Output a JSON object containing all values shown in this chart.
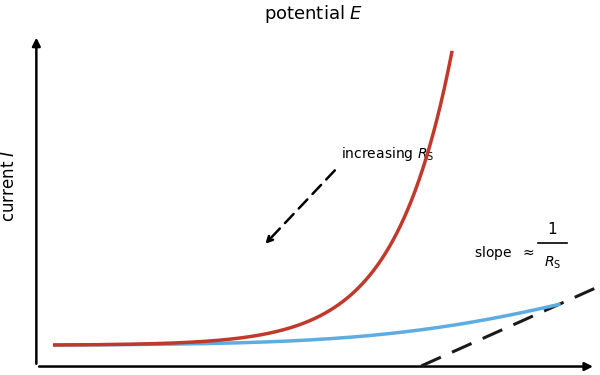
{
  "title": "potential $E$",
  "ylabel": "current $I$",
  "bg_color": "#ffffff",
  "red_color": "#c0392b",
  "blue_color": "#5dade2",
  "dashed_color": "#1a1a1a",
  "xlim": [
    -0.05,
    1.18
  ],
  "ylim": [
    -0.09,
    1.08
  ],
  "I0": 0.001,
  "n_red": 8.0,
  "n_blue": 5.5,
  "Rs_blue": 1.4
}
